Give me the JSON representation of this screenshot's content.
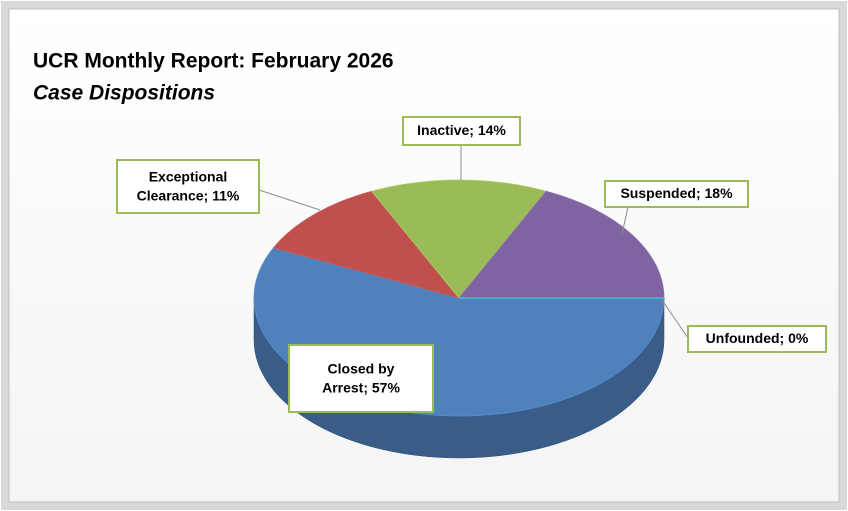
{
  "chart_data": {
    "type": "pie",
    "title": "UCR Monthly Report:  February 2026",
    "subtitle": "Case Dispositions",
    "categories": [
      "Closed by Arrest",
      "Exceptional Clearance",
      "Inactive",
      "Suspended",
      "Unfounded"
    ],
    "values": [
      57,
      11,
      14,
      18,
      0
    ],
    "value_labels": [
      "57%",
      "11%",
      "14%",
      "18%",
      "0%"
    ],
    "separator": "; ",
    "colors": [
      "#4f81bd",
      "#c0504d",
      "#9bbb59",
      "#8064a2",
      "#4bacc6"
    ]
  }
}
